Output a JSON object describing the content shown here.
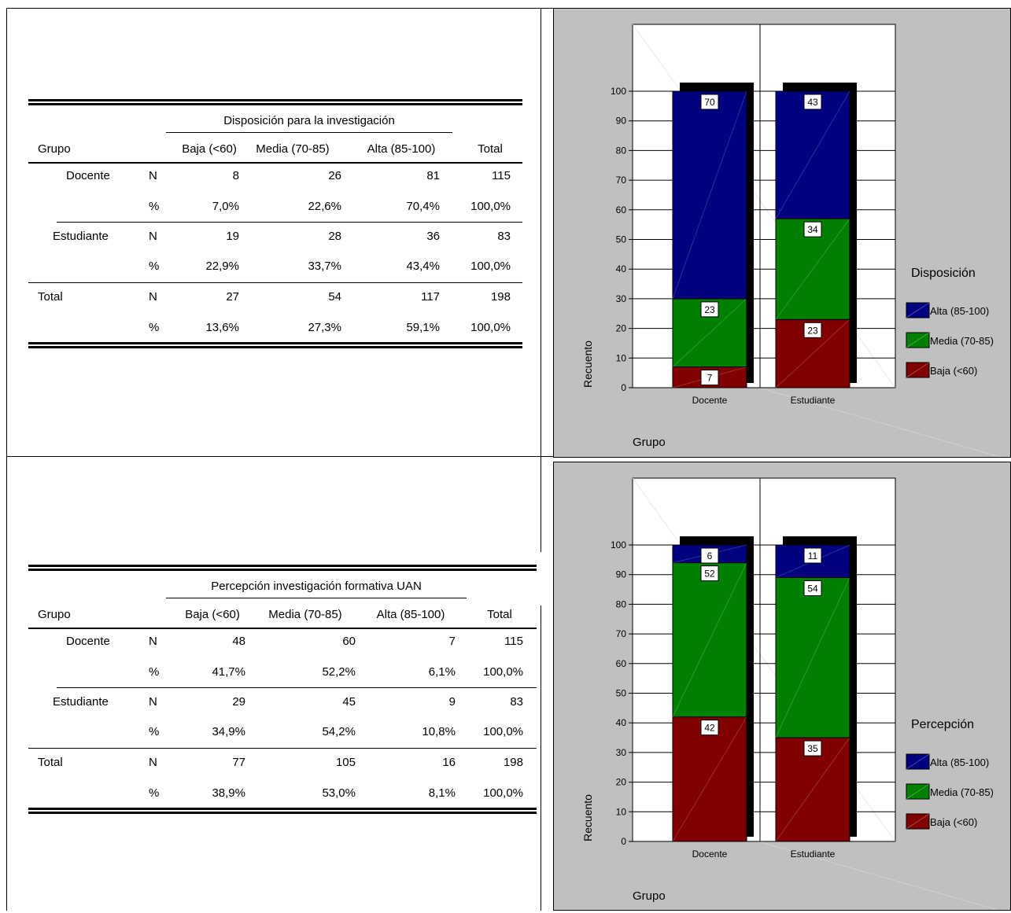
{
  "tables": [
    {
      "header_group": "Disposición para la investigación",
      "col_group": "Grupo",
      "columns": [
        "Baja (<60)",
        "Media (70-85)",
        "Alta (85-100)",
        "Total"
      ],
      "rows": [
        {
          "group": "Docente",
          "stat": "N",
          "values": [
            "8",
            "26",
            "81",
            "115"
          ]
        },
        {
          "group": "",
          "stat": "%",
          "values": [
            "7,0%",
            "22,6%",
            "70,4%",
            "100,0%"
          ]
        },
        {
          "group": "Estudiante",
          "stat": "N",
          "values": [
            "19",
            "28",
            "36",
            "83"
          ]
        },
        {
          "group": "",
          "stat": "%",
          "values": [
            "22,9%",
            "33,7%",
            "43,4%",
            "100,0%"
          ]
        },
        {
          "group": "Total",
          "stat": "N",
          "values": [
            "27",
            "54",
            "117",
            "198"
          ]
        },
        {
          "group": "",
          "stat": "%",
          "values": [
            "13,6%",
            "27,3%",
            "59,1%",
            "100,0%"
          ]
        }
      ]
    },
    {
      "header_group": "Percepción investigación formativa UAN",
      "col_group": "Grupo",
      "columns": [
        "Baja (<60)",
        "Media (70-85)",
        "Alta (85-100)",
        "Total"
      ],
      "rows": [
        {
          "group": "Docente",
          "stat": "N",
          "values": [
            "48",
            "60",
            "7",
            "115"
          ]
        },
        {
          "group": "",
          "stat": "%",
          "values": [
            "41,7%",
            "52,2%",
            "6,1%",
            "100,0%"
          ]
        },
        {
          "group": "Estudiante",
          "stat": "N",
          "values": [
            "29",
            "45",
            "9",
            "83"
          ]
        },
        {
          "group": "",
          "stat": "%",
          "values": [
            "34,9%",
            "54,2%",
            "10,8%",
            "100,0%"
          ]
        },
        {
          "group": "Total",
          "stat": "N",
          "values": [
            "77",
            "105",
            "16",
            "198"
          ]
        },
        {
          "group": "",
          "stat": "%",
          "values": [
            "38,9%",
            "53,0%",
            "8,1%",
            "100,0%"
          ]
        }
      ]
    }
  ],
  "chart_data": [
    {
      "type": "bar",
      "stacked": true,
      "percent_scale": true,
      "categories": [
        "Docente",
        "Estudiante"
      ],
      "xlabel": "Grupo",
      "ylabel": "Recuento",
      "ylim": [
        0,
        100
      ],
      "yticks": [
        0,
        10,
        20,
        30,
        40,
        50,
        60,
        70,
        80,
        90,
        100
      ],
      "legend_title": "Disposición",
      "legend_position": "right",
      "series": [
        {
          "name": "Baja (<60)",
          "color": "#800000",
          "values": [
            7,
            23
          ]
        },
        {
          "name": "Media (70-85)",
          "color": "#008000",
          "values": [
            23,
            34
          ]
        },
        {
          "name": "Alta (85-100)",
          "color": "#000080",
          "values": [
            70,
            43
          ]
        }
      ]
    },
    {
      "type": "bar",
      "stacked": true,
      "percent_scale": true,
      "categories": [
        "Docente",
        "Estudiante"
      ],
      "xlabel": "Grupo",
      "ylabel": "Recuento",
      "ylim": [
        0,
        100
      ],
      "yticks": [
        0,
        10,
        20,
        30,
        40,
        50,
        60,
        70,
        80,
        90,
        100
      ],
      "legend_title": "Percepción",
      "legend_position": "right",
      "series": [
        {
          "name": "Baja (<60)",
          "color": "#800000",
          "values": [
            42,
            35
          ]
        },
        {
          "name": "Media (70-85)",
          "color": "#008000",
          "values": [
            52,
            54
          ]
        },
        {
          "name": "Alta (85-100)",
          "color": "#000080",
          "values": [
            6,
            11
          ]
        }
      ]
    }
  ]
}
